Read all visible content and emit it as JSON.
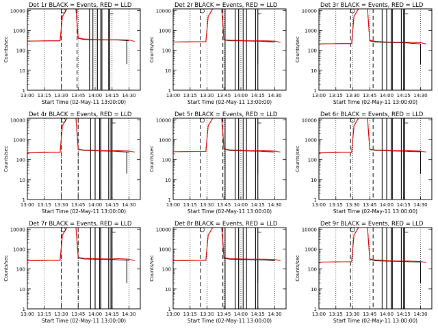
{
  "chart_data": [
    {
      "type": "line",
      "title": "Det 1r BLACK = Events, RED = LLD",
      "xlabel": "Start Time (02-May-11 13:00:00)",
      "ylabel": "Counts/sec",
      "x_ticks": [
        "13:00",
        "13:15",
        "13:30",
        "13:45",
        "14:00",
        "14:15",
        "14:30"
      ],
      "y_ticks": [
        "1",
        "10",
        "100",
        "1000",
        "10000"
      ],
      "ylog": true,
      "xlim": [
        "13:00",
        "14:40"
      ],
      "ylim": [
        1,
        12000
      ],
      "series": [
        {
          "name": "Events",
          "color": "#000000",
          "x": [
            "13:00",
            "13:20",
            "13:29",
            "13:31",
            "13:35",
            "13:43",
            "13:45",
            "13:50",
            "14:00",
            "14:10",
            "14:15",
            "14:20",
            "14:30"
          ],
          "y": [
            290,
            300,
            300,
            5000,
            12000,
            12000,
            400,
            350,
            340,
            330,
            330,
            330,
            300
          ]
        },
        {
          "name": "LLD",
          "color": "#e00000",
          "x": [
            "13:00",
            "13:20",
            "13:29",
            "13:31",
            "13:35",
            "13:43",
            "13:45",
            "13:50",
            "14:00",
            "14:10",
            "14:15",
            "14:20",
            "14:30",
            "14:35"
          ],
          "y": [
            290,
            300,
            300,
            5000,
            12000,
            12000,
            420,
            370,
            350,
            340,
            340,
            340,
            330,
            280
          ]
        }
      ],
      "dashed_times": [
        "13:30",
        "13:44"
      ],
      "vlines": [
        "13:55",
        "13:58",
        "14:02",
        "14:05",
        "14:06",
        "14:12",
        "14:13"
      ],
      "dropout": {
        "x": "14:28",
        "y": 20
      }
    },
    {
      "type": "line",
      "title": "Det 2r BLACK = Events, RED = LLD",
      "xlabel": "Start Time (02-May-11 13:00:00)",
      "ylabel": "Counts/sec",
      "x_ticks": [
        "13:00",
        "13:15",
        "13:30",
        "13:45",
        "14:00",
        "14:15",
        "14:30"
      ],
      "y_ticks": [
        "1",
        "10",
        "100",
        "1000",
        "10000"
      ],
      "ylog": true,
      "xlim": [
        "13:00",
        "14:40"
      ],
      "ylim": [
        1,
        12000
      ],
      "series": [
        {
          "name": "Events",
          "color": "#000000",
          "x": [
            "13:00",
            "13:20",
            "13:29",
            "13:31",
            "13:35",
            "13:43",
            "13:45",
            "13:50",
            "14:00",
            "14:10",
            "14:15",
            "14:20",
            "14:30"
          ],
          "y": [
            260,
            270,
            270,
            5000,
            12000,
            12000,
            330,
            300,
            300,
            290,
            290,
            280,
            260
          ]
        },
        {
          "name": "LLD",
          "color": "#e00000",
          "x": [
            "13:00",
            "13:20",
            "13:29",
            "13:31",
            "13:35",
            "13:43",
            "13:45",
            "13:50",
            "14:00",
            "14:10",
            "14:15",
            "14:20",
            "14:30",
            "14:35"
          ],
          "y": [
            260,
            270,
            270,
            5000,
            12000,
            12000,
            340,
            320,
            310,
            300,
            300,
            300,
            290,
            250
          ]
        }
      ],
      "dashed_times": [
        "13:24",
        "13:44"
      ],
      "vlines": [
        "13:46",
        "13:55",
        "13:58",
        "14:02",
        "14:05",
        "14:13",
        "14:15"
      ],
      "dropout": {
        "x": "14:15",
        "y": 20
      }
    },
    {
      "type": "line",
      "title": "Det 3r BLACK = Events, RED = LLD",
      "xlabel": "Start Time (02-May-11 13:00:00)",
      "ylabel": "Counts/sec",
      "x_ticks": [
        "13:00",
        "13:15",
        "13:30",
        "13:45",
        "14:00",
        "14:15",
        "14:30"
      ],
      "y_ticks": [
        "1",
        "10",
        "100",
        "1000",
        "10000"
      ],
      "ylog": true,
      "xlim": [
        "13:00",
        "14:40"
      ],
      "ylim": [
        1,
        12000
      ],
      "series": [
        {
          "name": "Events",
          "color": "#000000",
          "x": [
            "13:00",
            "13:20",
            "13:29",
            "13:31",
            "13:35",
            "13:43",
            "13:45",
            "13:50",
            "14:00",
            "14:10",
            "14:15",
            "14:20",
            "14:30"
          ],
          "y": [
            210,
            220,
            220,
            5000,
            12000,
            12000,
            300,
            260,
            250,
            240,
            240,
            230,
            210
          ]
        },
        {
          "name": "LLD",
          "color": "#e00000",
          "x": [
            "13:00",
            "13:20",
            "13:29",
            "13:31",
            "13:35",
            "13:43",
            "13:45",
            "13:50",
            "14:00",
            "14:10",
            "14:15",
            "14:20",
            "14:30",
            "14:35"
          ],
          "y": [
            210,
            220,
            220,
            5000,
            12000,
            12000,
            320,
            280,
            260,
            250,
            250,
            250,
            240,
            210
          ]
        }
      ],
      "dashed_times": [
        "13:28",
        "13:48"
      ],
      "vlines": [
        "13:56",
        "14:00",
        "14:04",
        "14:05",
        "14:13",
        "14:15",
        "14:16"
      ],
      "dropout": {
        "x": "14:30",
        "y": 20
      }
    },
    {
      "type": "line",
      "title": "Det 4r BLACK = Events, RED = LLD",
      "xlabel": "Start Time (02-May-11 13:00:00)",
      "ylabel": "Counts/sec",
      "x_ticks": [
        "13:00",
        "13:15",
        "13:30",
        "13:45",
        "14:00",
        "14:15",
        "14:30"
      ],
      "y_ticks": [
        "1",
        "10",
        "100",
        "1000",
        "10000"
      ],
      "ylog": true,
      "xlim": [
        "13:00",
        "14:40"
      ],
      "ylim": [
        1,
        12000
      ],
      "series": [
        {
          "name": "Events",
          "color": "#000000",
          "x": [
            "13:00",
            "13:20",
            "13:29",
            "13:31",
            "13:35",
            "13:43",
            "13:45",
            "13:50",
            "14:00",
            "14:10",
            "14:15",
            "14:20",
            "14:30"
          ],
          "y": [
            220,
            230,
            230,
            5000,
            12000,
            12000,
            320,
            290,
            280,
            270,
            270,
            260,
            230
          ]
        },
        {
          "name": "LLD",
          "color": "#e00000",
          "x": [
            "13:00",
            "13:20",
            "13:29",
            "13:31",
            "13:35",
            "13:43",
            "13:45",
            "13:50",
            "14:00",
            "14:10",
            "14:15",
            "14:20",
            "14:30",
            "14:35"
          ],
          "y": [
            220,
            230,
            230,
            5000,
            12000,
            12000,
            340,
            300,
            290,
            280,
            280,
            280,
            270,
            240
          ]
        }
      ],
      "dashed_times": [
        "13:30",
        "13:45"
      ],
      "vlines": [
        "13:56",
        "14:00",
        "14:04",
        "14:05",
        "14:12",
        "14:14",
        "14:15"
      ],
      "dropout": {
        "x": "14:28",
        "y": 20
      }
    },
    {
      "type": "line",
      "title": "Det 5r BLACK = Events, RED = LLD",
      "xlabel": "Start Time (02-May-11 13:00:00)",
      "ylabel": "Counts/sec",
      "x_ticks": [
        "13:00",
        "13:15",
        "13:30",
        "13:45",
        "14:00",
        "14:15",
        "14:30"
      ],
      "y_ticks": [
        "1",
        "10",
        "100",
        "1000",
        "10000"
      ],
      "ylog": true,
      "xlim": [
        "13:00",
        "14:40"
      ],
      "ylim": [
        1,
        12000
      ],
      "series": [
        {
          "name": "Events",
          "color": "#000000",
          "x": [
            "13:00",
            "13:20",
            "13:29",
            "13:31",
            "13:35",
            "13:43",
            "13:45",
            "13:50",
            "14:00",
            "14:10",
            "14:15",
            "14:20",
            "14:30"
          ],
          "y": [
            250,
            260,
            260,
            5000,
            12000,
            12000,
            340,
            290,
            280,
            270,
            270,
            260,
            240
          ]
        },
        {
          "name": "LLD",
          "color": "#e00000",
          "x": [
            "13:00",
            "13:20",
            "13:29",
            "13:31",
            "13:35",
            "13:43",
            "13:45",
            "13:50",
            "14:00",
            "14:10",
            "14:15",
            "14:20",
            "14:30",
            "14:35"
          ],
          "y": [
            250,
            260,
            260,
            5000,
            12000,
            12000,
            350,
            310,
            290,
            280,
            280,
            280,
            270,
            240
          ]
        }
      ],
      "dashed_times": [
        "13:24",
        "13:44"
      ],
      "vlines": [
        "13:46",
        "13:55",
        "13:58",
        "14:02",
        "14:05",
        "14:13",
        "14:15"
      ],
      "dropout": {
        "x": "14:15",
        "y": 20
      }
    },
    {
      "type": "line",
      "title": "Det 6r BLACK = Events, RED = LLD",
      "xlabel": "Start Time (02-May-11 13:00:00)",
      "ylabel": "Counts/sec",
      "x_ticks": [
        "13:00",
        "13:15",
        "13:30",
        "13:45",
        "14:00",
        "14:15",
        "14:30"
      ],
      "y_ticks": [
        "1",
        "10",
        "100",
        "1000",
        "10000"
      ],
      "ylog": true,
      "xlim": [
        "13:00",
        "14:40"
      ],
      "ylim": [
        1,
        12000
      ],
      "series": [
        {
          "name": "Events",
          "color": "#000000",
          "x": [
            "13:00",
            "13:20",
            "13:29",
            "13:31",
            "13:35",
            "13:43",
            "13:45",
            "13:50",
            "14:00",
            "14:10",
            "14:15",
            "14:20",
            "14:30"
          ],
          "y": [
            220,
            230,
            230,
            5000,
            12000,
            12000,
            320,
            290,
            280,
            270,
            270,
            260,
            250
          ]
        },
        {
          "name": "LLD",
          "color": "#e00000",
          "x": [
            "13:00",
            "13:20",
            "13:29",
            "13:31",
            "13:35",
            "13:43",
            "13:45",
            "13:50",
            "14:00",
            "14:10",
            "14:15",
            "14:20",
            "14:30",
            "14:35"
          ],
          "y": [
            220,
            230,
            230,
            5000,
            12000,
            12000,
            340,
            300,
            290,
            280,
            280,
            280,
            270,
            240
          ]
        }
      ],
      "dashed_times": [
        "13:28",
        "13:48"
      ],
      "vlines": [
        "13:56",
        "14:00",
        "14:04",
        "14:05",
        "14:13",
        "14:15",
        "14:16"
      ],
      "dropout": {
        "x": "14:30",
        "y": 20
      }
    },
    {
      "type": "line",
      "title": "Det 7r BLACK = Events, RED = LLD",
      "xlabel": "Start Time (02-May-11 13:00:00)",
      "ylabel": "Counts/sec",
      "x_ticks": [
        "13:00",
        "13:15",
        "13:30",
        "13:45",
        "14:00",
        "14:15",
        "14:30"
      ],
      "y_ticks": [
        "1",
        "10",
        "100",
        "1000",
        "10000"
      ],
      "ylog": true,
      "xlim": [
        "13:00",
        "14:40"
      ],
      "ylim": [
        1,
        12000
      ],
      "series": [
        {
          "name": "Events",
          "color": "#000000",
          "x": [
            "13:00",
            "13:20",
            "13:29",
            "13:31",
            "13:35",
            "13:43",
            "13:45",
            "13:50",
            "14:00",
            "14:10",
            "14:15",
            "14:20",
            "14:30"
          ],
          "y": [
            260,
            270,
            270,
            5000,
            12000,
            12000,
            360,
            320,
            310,
            300,
            300,
            290,
            270
          ]
        },
        {
          "name": "LLD",
          "color": "#e00000",
          "x": [
            "13:00",
            "13:20",
            "13:29",
            "13:31",
            "13:35",
            "13:43",
            "13:45",
            "13:50",
            "14:00",
            "14:10",
            "14:15",
            "14:20",
            "14:30",
            "14:35"
          ],
          "y": [
            260,
            270,
            270,
            5000,
            12000,
            12000,
            380,
            340,
            330,
            320,
            320,
            330,
            310,
            260
          ]
        }
      ],
      "dashed_times": [
        "13:30",
        "13:45"
      ],
      "vlines": [
        "13:56",
        "14:00",
        "14:04",
        "14:05",
        "14:12",
        "14:14",
        "14:15"
      ],
      "dropout": {
        "x": "14:28",
        "y": 20
      }
    },
    {
      "type": "line",
      "title": "Det 8r BLACK = Events, RED = LLD",
      "xlabel": "Start Time (02-May-11 13:00:00)",
      "ylabel": "Counts/sec",
      "x_ticks": [
        "13:00",
        "13:15",
        "13:30",
        "13:45",
        "14:00",
        "14:15",
        "14:30"
      ],
      "y_ticks": [
        "1",
        "10",
        "100",
        "1000",
        "10000"
      ],
      "ylog": true,
      "xlim": [
        "13:00",
        "14:40"
      ],
      "ylim": [
        1,
        12000
      ],
      "series": [
        {
          "name": "Events",
          "color": "#000000",
          "x": [
            "13:00",
            "13:20",
            "13:29",
            "13:31",
            "13:35",
            "13:43",
            "13:45",
            "13:50",
            "14:00",
            "14:10",
            "14:15",
            "14:20",
            "14:30"
          ],
          "y": [
            260,
            270,
            270,
            5000,
            12000,
            12000,
            350,
            310,
            300,
            290,
            290,
            280,
            260
          ]
        },
        {
          "name": "LLD",
          "color": "#e00000",
          "x": [
            "13:00",
            "13:20",
            "13:29",
            "13:31",
            "13:35",
            "13:43",
            "13:45",
            "13:50",
            "14:00",
            "14:10",
            "14:15",
            "14:20",
            "14:30",
            "14:35"
          ],
          "y": [
            260,
            270,
            270,
            5000,
            12000,
            12000,
            370,
            330,
            320,
            310,
            310,
            310,
            300,
            260
          ]
        }
      ],
      "dashed_times": [
        "13:24",
        "13:44"
      ],
      "vlines": [
        "13:46",
        "13:55",
        "13:58",
        "14:02",
        "14:05",
        "14:13",
        "14:15"
      ],
      "dropout": {
        "x": "14:15",
        "y": 20
      }
    },
    {
      "type": "line",
      "title": "Det 9r BLACK = Events, RED = LLD",
      "xlabel": "Start Time (02-May-11 13:00:00)",
      "ylabel": "Counts/sec",
      "x_ticks": [
        "13:00",
        "13:15",
        "13:30",
        "13:45",
        "14:00",
        "14:15",
        "14:30"
      ],
      "y_ticks": [
        "1",
        "10",
        "100",
        "1000",
        "10000"
      ],
      "ylog": true,
      "xlim": [
        "13:00",
        "14:40"
      ],
      "ylim": [
        1,
        12000
      ],
      "series": [
        {
          "name": "Events",
          "color": "#000000",
          "x": [
            "13:00",
            "13:20",
            "13:29",
            "13:31",
            "13:35",
            "13:43",
            "13:45",
            "13:50",
            "14:00",
            "14:10",
            "14:15",
            "14:20",
            "14:30"
          ],
          "y": [
            220,
            230,
            230,
            5000,
            12000,
            12000,
            300,
            260,
            250,
            240,
            240,
            230,
            220
          ]
        },
        {
          "name": "LLD",
          "color": "#e00000",
          "x": [
            "13:00",
            "13:20",
            "13:29",
            "13:31",
            "13:35",
            "13:43",
            "13:45",
            "13:50",
            "14:00",
            "14:10",
            "14:15",
            "14:20",
            "14:30",
            "14:35"
          ],
          "y": [
            220,
            230,
            230,
            5000,
            12000,
            12000,
            320,
            280,
            260,
            250,
            250,
            250,
            240,
            210
          ]
        }
      ],
      "dashed_times": [
        "13:28",
        "13:48"
      ],
      "vlines": [
        "13:56",
        "14:00",
        "14:04",
        "14:05",
        "14:13",
        "14:15",
        "14:16"
      ],
      "dropout": {
        "x": "14:30",
        "y": 20
      }
    }
  ]
}
